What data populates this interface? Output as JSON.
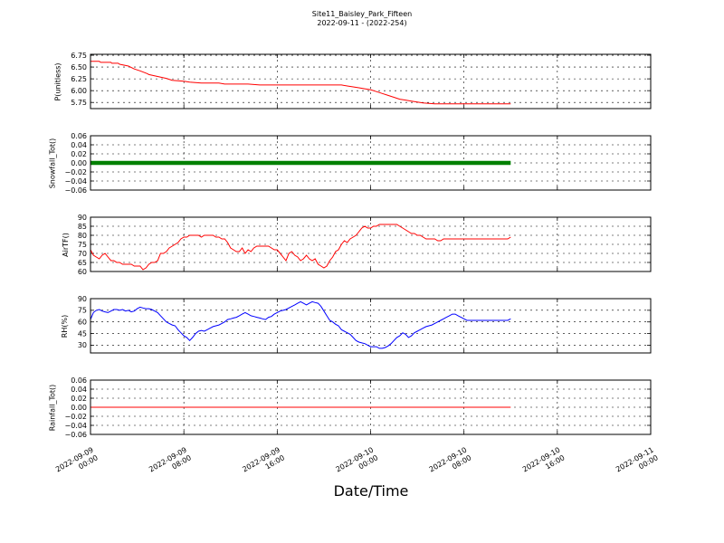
{
  "figure": {
    "title": "Site11_Baisley_Park_Fifteen",
    "subtitle": "2022-09-11 - (2022-254)",
    "xlabel": "Date/Time"
  },
  "chart_data": [
    {
      "type": "line",
      "ylabel": "P(unitless)",
      "ylim": [
        5.62,
        6.77
      ],
      "yticks": [
        "6.75",
        "6.50",
        "6.25",
        "6.00",
        "5.75"
      ],
      "yticks_values": [
        6.75,
        6.5,
        6.25,
        6.0,
        5.75
      ],
      "grid": true,
      "series": [
        {
          "color": "#ff0000",
          "x_hours": [
            0,
            3,
            3.5,
            7,
            7.3,
            9.5,
            10,
            13,
            15,
            17,
            19.5,
            20,
            26,
            28,
            32,
            34,
            38,
            44,
            46,
            48,
            50,
            52,
            54,
            56,
            58,
            60,
            62,
            64,
            67,
            70,
            72,
            74,
            76,
            78,
            80,
            82,
            84,
            86,
            88,
            90,
            92,
            94,
            96,
            98,
            100,
            102,
            104,
            106,
            108,
            110,
            112,
            114,
            116,
            118,
            120,
            122,
            124,
            126,
            128,
            130,
            132,
            134,
            136,
            138,
            140,
            142,
            144
          ],
          "values": [
            6.62,
            6.62,
            6.6,
            6.6,
            6.58,
            6.58,
            6.56,
            6.52,
            6.46,
            6.42,
            6.36,
            6.34,
            6.26,
            6.22,
            6.2,
            6.18,
            6.16,
            6.16,
            6.14,
            6.14,
            6.14,
            6.14,
            6.14,
            6.13,
            6.12,
            6.12,
            6.12,
            6.12,
            6.12,
            6.12,
            6.12,
            6.12,
            6.12,
            6.12,
            6.12,
            6.12,
            6.12,
            6.12,
            6.1,
            6.08,
            6.06,
            6.04,
            6.02,
            5.98,
            5.94,
            5.9,
            5.86,
            5.82,
            5.8,
            5.78,
            5.76,
            5.74,
            5.73,
            5.72,
            5.72,
            5.72,
            5.72,
            5.72,
            5.72,
            5.72,
            5.72,
            5.72,
            5.72,
            5.72,
            5.72,
            5.72,
            5.72
          ]
        }
      ]
    },
    {
      "type": "line",
      "ylabel": "Snowfall_Tot()",
      "ylim": [
        -0.06,
        0.06
      ],
      "yticks": [
        "0.06",
        "0.04",
        "0.02",
        "0.00",
        "−0.02",
        "−0.04",
        "−0.06"
      ],
      "yticks_values": [
        0.06,
        0.04,
        0.02,
        0.0,
        -0.02,
        -0.04,
        -0.06
      ],
      "grid": true,
      "series": [
        {
          "color": "#008000",
          "style": "thick-markers",
          "x_hours": [
            0,
            144
          ],
          "values": [
            0,
            0
          ]
        }
      ]
    },
    {
      "type": "line",
      "ylabel": "AirTF()",
      "ylim": [
        60,
        90
      ],
      "yticks": [
        "90",
        "85",
        "80",
        "75",
        "70",
        "65",
        "60"
      ],
      "yticks_values": [
        90,
        85,
        80,
        75,
        70,
        65,
        60
      ],
      "grid": true,
      "series": [
        {
          "color": "#ff0000",
          "x_hours": [
            0,
            1,
            2,
            3,
            4,
            5,
            6,
            7,
            8,
            9,
            10,
            11,
            12,
            13,
            14,
            15,
            16,
            17,
            18,
            19,
            20,
            21,
            22,
            23,
            24,
            25,
            26,
            27,
            28,
            29,
            30,
            31,
            32,
            33,
            34,
            35,
            36,
            37,
            38,
            39,
            40,
            41,
            42,
            43,
            44,
            45,
            46,
            47,
            48,
            49,
            50,
            51,
            52,
            53,
            54,
            55,
            56,
            57,
            58,
            59,
            60,
            61,
            62,
            63,
            64,
            65,
            66,
            67,
            68,
            69,
            70,
            71,
            72,
            73,
            74,
            75,
            76,
            77,
            78,
            79,
            80,
            81,
            82,
            83,
            84,
            85,
            86,
            87,
            88,
            89,
            90,
            91,
            92,
            93,
            94,
            95,
            96,
            97,
            98,
            99,
            100,
            101,
            102,
            103,
            104,
            105,
            106,
            107,
            108,
            109,
            110,
            111,
            112,
            113,
            114,
            115,
            116,
            117,
            118,
            119,
            120,
            121,
            122,
            123,
            124,
            125,
            126,
            127,
            128,
            129,
            130,
            131,
            132,
            133,
            134,
            135,
            136,
            137,
            138,
            139,
            140,
            141,
            142,
            143,
            144
          ],
          "values": [
            72,
            69,
            68,
            67,
            69,
            70,
            68,
            66,
            66,
            65,
            65,
            64,
            64,
            64,
            64,
            63,
            63,
            63,
            61,
            62,
            64,
            65,
            65,
            66,
            70,
            70,
            71,
            73,
            74,
            75,
            76,
            78,
            79,
            79,
            80,
            80,
            80,
            80,
            79,
            80,
            80,
            80,
            80,
            79,
            79,
            78,
            78,
            76,
            73,
            72,
            71,
            71,
            73,
            70,
            72,
            71,
            73,
            74,
            74,
            74,
            74,
            74,
            73,
            72,
            72,
            70,
            68,
            66,
            70,
            71,
            69,
            68,
            66,
            67,
            69,
            67,
            66,
            67,
            64,
            63,
            62,
            63,
            66,
            68,
            71,
            72,
            75,
            77,
            76,
            78,
            79,
            80,
            82,
            84,
            85,
            84,
            84,
            85,
            85,
            86,
            86,
            86,
            86,
            86,
            86,
            86,
            85,
            84,
            83,
            82,
            81,
            81,
            80,
            80,
            79,
            78,
            78,
            78,
            78,
            77,
            77,
            78,
            78,
            78,
            78,
            78,
            78,
            78,
            78,
            78,
            78,
            78,
            78,
            78,
            78,
            78,
            78,
            78,
            78,
            78,
            78,
            78,
            78,
            78,
            79
          ]
        }
      ]
    },
    {
      "type": "line",
      "ylabel": "RH(%)",
      "ylim": [
        20,
        90
      ],
      "yticks": [
        "90",
        "75",
        "60",
        "45",
        "30"
      ],
      "yticks_values": [
        90,
        75,
        60,
        45,
        30
      ],
      "grid": true,
      "series": [
        {
          "color": "#0000ff",
          "x_hours": [
            0,
            1,
            2,
            3,
            4,
            5,
            6,
            7,
            8,
            9,
            10,
            11,
            12,
            13,
            14,
            15,
            16,
            17,
            18,
            19,
            20,
            21,
            22,
            23,
            24,
            25,
            26,
            27,
            28,
            29,
            30,
            31,
            32,
            33,
            34,
            35,
            36,
            37,
            38,
            39,
            40,
            41,
            42,
            43,
            44,
            45,
            46,
            47,
            48,
            49,
            50,
            51,
            52,
            53,
            54,
            55,
            56,
            57,
            58,
            59,
            60,
            61,
            62,
            63,
            64,
            65,
            66,
            67,
            68,
            69,
            70,
            71,
            72,
            73,
            74,
            75,
            76,
            77,
            78,
            79,
            80,
            81,
            82,
            83,
            84,
            85,
            86,
            87,
            88,
            89,
            90,
            91,
            92,
            93,
            94,
            95,
            96,
            97,
            98,
            99,
            100,
            101,
            102,
            103,
            104,
            105,
            106,
            107,
            108,
            109,
            110,
            111,
            112,
            113,
            114,
            115,
            116,
            117,
            118,
            119,
            120,
            121,
            122,
            123,
            124,
            125,
            126,
            127,
            128,
            129,
            130,
            131,
            132,
            133,
            134,
            135,
            136,
            137,
            138,
            139,
            140,
            141,
            142,
            143,
            144
          ],
          "values": [
            63,
            72,
            75,
            76,
            74,
            73,
            72,
            74,
            76,
            76,
            75,
            76,
            74,
            75,
            73,
            74,
            77,
            79,
            78,
            77,
            77,
            76,
            74,
            72,
            68,
            64,
            60,
            58,
            56,
            55,
            50,
            46,
            42,
            40,
            36,
            40,
            45,
            48,
            49,
            48,
            50,
            52,
            54,
            55,
            56,
            58,
            60,
            63,
            64,
            65,
            66,
            68,
            70,
            72,
            70,
            68,
            67,
            66,
            65,
            64,
            63,
            66,
            67,
            70,
            72,
            74,
            75,
            76,
            78,
            80,
            82,
            84,
            86,
            84,
            82,
            84,
            86,
            85,
            84,
            80,
            74,
            68,
            62,
            60,
            57,
            55,
            50,
            48,
            46,
            44,
            40,
            36,
            34,
            33,
            32,
            30,
            28,
            28,
            28,
            26,
            26,
            27,
            29,
            32,
            36,
            40,
            42,
            46,
            44,
            40,
            42,
            46,
            48,
            50,
            52,
            54,
            55,
            56,
            58,
            60,
            62,
            64,
            66,
            68,
            70,
            70,
            68,
            66,
            64,
            62,
            62,
            62,
            62,
            62,
            62,
            62,
            62,
            62,
            62,
            62,
            62,
            62,
            62,
            62,
            64
          ]
        }
      ]
    },
    {
      "type": "line",
      "ylabel": "Rainfall_Tot()",
      "ylim": [
        -0.06,
        0.06
      ],
      "yticks": [
        "0.06",
        "0.04",
        "0.02",
        "0.00",
        "−0.02",
        "−0.04",
        "−0.06"
      ],
      "yticks_values": [
        0.06,
        0.04,
        0.02,
        0.0,
        -0.02,
        -0.04,
        -0.06
      ],
      "grid": true,
      "series": [
        {
          "color": "#ff0000",
          "x_hours": [
            0,
            144
          ],
          "values": [
            0,
            0
          ]
        }
      ]
    }
  ],
  "x_axis": {
    "ticks": [
      {
        "hours": 0,
        "line1": "2022-09-09",
        "line2": "00:00"
      },
      {
        "hours": 32,
        "line1": "2022-09-09",
        "line2": "08:00"
      },
      {
        "hours": 64,
        "line1": "2022-09-09",
        "line2": "16:00"
      },
      {
        "hours": 96,
        "line1": "2022-09-10",
        "line2": "00:00"
      },
      {
        "hours": 128,
        "line1": "2022-09-10",
        "line2": "08:00"
      },
      {
        "hours": 160,
        "line1": "2022-09-10",
        "line2": "16:00"
      },
      {
        "hours": 192,
        "line1": "2022-09-11",
        "line2": "00:00"
      }
    ],
    "range_hours": [
      0,
      192
    ]
  }
}
